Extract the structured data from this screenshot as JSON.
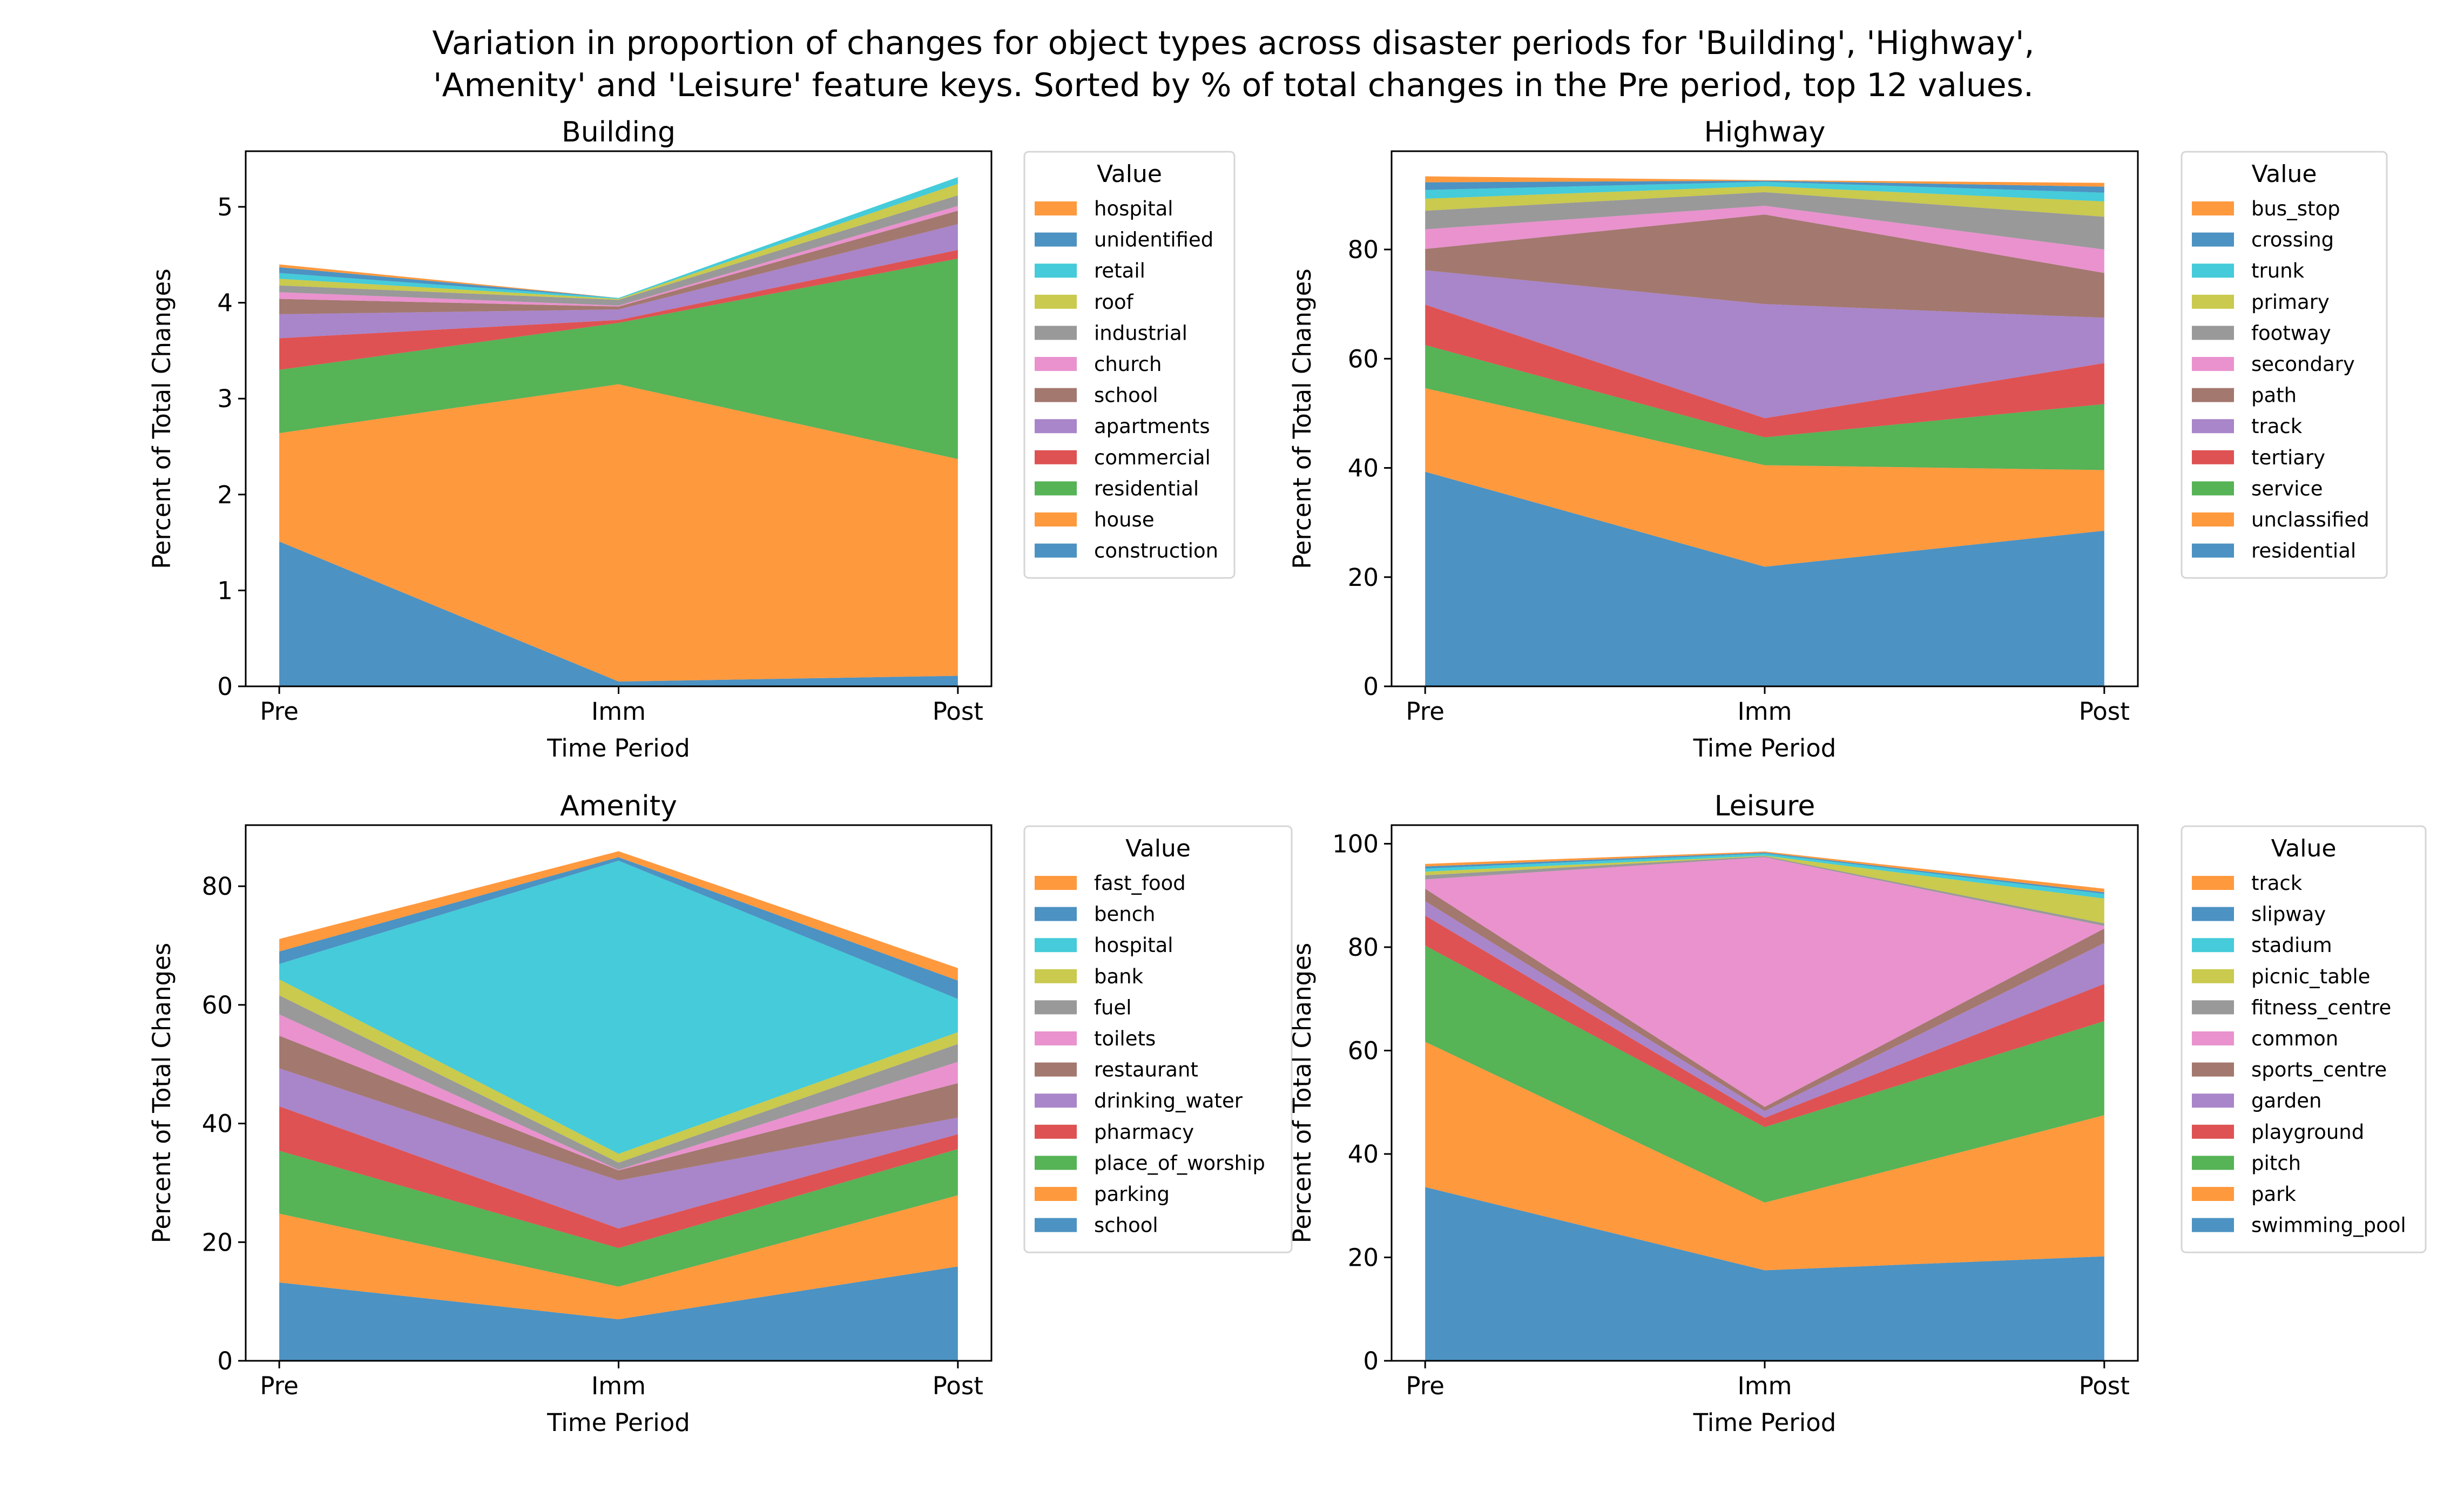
{
  "figure": {
    "title_lines": [
      "Variation in proportion of changes for object types across disaster periods for 'Building', 'Highway',",
      "'Amenity' and 'Leisure' feature keys. Sorted by % of total changes in the Pre period, top 12 values."
    ]
  },
  "palette": [
    "#1f77b4",
    "#ff7f0e",
    "#2ca02c",
    "#d62728",
    "#9467bd",
    "#8c564b",
    "#e377c2",
    "#7f7f7f",
    "#bcbd22",
    "#17becf",
    "#1f77b4",
    "#ff7f0e"
  ],
  "fill_alpha": 0.8,
  "chart_data": [
    {
      "type": "area",
      "stacked": true,
      "title": "Building",
      "xlabel": "Time Period",
      "ylabel": "Percent of Total Changes",
      "categories": [
        "Pre",
        "Imm",
        "Post"
      ],
      "ylim": [
        0,
        5.58
      ],
      "yticks": [
        0,
        1,
        2,
        3,
        4,
        5
      ],
      "legend_title": "Value",
      "legend_placement": "outside-right",
      "series": [
        {
          "name": "construction",
          "values": [
            1.51,
            0.05,
            0.11
          ]
        },
        {
          "name": "house",
          "values": [
            1.13,
            3.1,
            2.26
          ]
        },
        {
          "name": "residential",
          "values": [
            0.66,
            0.64,
            2.09
          ]
        },
        {
          "name": "commercial",
          "values": [
            0.33,
            0.03,
            0.09
          ]
        },
        {
          "name": "apartments",
          "values": [
            0.25,
            0.11,
            0.27
          ]
        },
        {
          "name": "school",
          "values": [
            0.16,
            0.03,
            0.14
          ]
        },
        {
          "name": "church",
          "values": [
            0.07,
            0.01,
            0.05
          ]
        },
        {
          "name": "industrial",
          "values": [
            0.07,
            0.06,
            0.11
          ]
        },
        {
          "name": "roof",
          "values": [
            0.07,
            0.01,
            0.12
          ]
        },
        {
          "name": "retail",
          "values": [
            0.06,
            0.01,
            0.07
          ]
        },
        {
          "name": "unidentified",
          "values": [
            0.06,
            0.0,
            0.0
          ]
        },
        {
          "name": "hospital",
          "values": [
            0.03,
            0.0,
            0.0
          ]
        }
      ]
    },
    {
      "type": "area",
      "stacked": true,
      "title": "Highway",
      "xlabel": "Time Period",
      "ylabel": "Percent of Total Changes",
      "categories": [
        "Pre",
        "Imm",
        "Post"
      ],
      "ylim": [
        0,
        98
      ],
      "yticks": [
        0,
        20,
        40,
        60,
        80
      ],
      "legend_title": "Value",
      "legend_placement": "outside-right",
      "series": [
        {
          "name": "residential",
          "values": [
            39.3,
            21.9,
            28.5
          ]
        },
        {
          "name": "unclassified",
          "values": [
            15.3,
            18.6,
            11.1
          ]
        },
        {
          "name": "service",
          "values": [
            7.9,
            5.1,
            12.1
          ]
        },
        {
          "name": "tertiary",
          "values": [
            7.4,
            3.5,
            7.5
          ]
        },
        {
          "name": "track",
          "values": [
            6.3,
            20.9,
            8.3
          ]
        },
        {
          "name": "path",
          "values": [
            3.9,
            16.4,
            8.2
          ]
        },
        {
          "name": "secondary",
          "values": [
            3.6,
            1.6,
            4.3
          ]
        },
        {
          "name": "footway",
          "values": [
            3.4,
            2.5,
            6.0
          ]
        },
        {
          "name": "primary",
          "values": [
            2.2,
            1.1,
            2.8
          ]
        },
        {
          "name": "trunk",
          "values": [
            1.6,
            0.8,
            1.6
          ]
        },
        {
          "name": "crossing",
          "values": [
            1.4,
            0.2,
            1.1
          ]
        },
        {
          "name": "bus_stop",
          "values": [
            1.1,
            0.1,
            0.7
          ]
        }
      ]
    },
    {
      "type": "area",
      "stacked": true,
      "title": "Amenity",
      "xlabel": "Time Period",
      "ylabel": "Percent of Total Changes",
      "categories": [
        "Pre",
        "Imm",
        "Post"
      ],
      "ylim": [
        0,
        90.3
      ],
      "yticks": [
        0,
        20,
        40,
        60,
        80
      ],
      "legend_title": "Value",
      "legend_placement": "outside-right",
      "series": [
        {
          "name": "school",
          "values": [
            13.2,
            7.0,
            15.9
          ]
        },
        {
          "name": "parking",
          "values": [
            11.6,
            5.5,
            12.0
          ]
        },
        {
          "name": "place_of_worship",
          "values": [
            10.6,
            6.5,
            7.8
          ]
        },
        {
          "name": "pharmacy",
          "values": [
            7.5,
            3.3,
            2.5
          ]
        },
        {
          "name": "drinking_water",
          "values": [
            6.4,
            8.1,
            2.8
          ]
        },
        {
          "name": "restaurant",
          "values": [
            5.5,
            1.7,
            5.8
          ]
        },
        {
          "name": "toilets",
          "values": [
            3.6,
            0.1,
            3.6
          ]
        },
        {
          "name": "fuel",
          "values": [
            3.2,
            1.2,
            3.0
          ]
        },
        {
          "name": "bank",
          "values": [
            2.7,
            1.5,
            2.0
          ]
        },
        {
          "name": "hospital",
          "values": [
            2.6,
            49.4,
            5.6
          ]
        },
        {
          "name": "bench",
          "values": [
            2.1,
            0.6,
            3.1
          ]
        },
        {
          "name": "fast_food",
          "values": [
            2.1,
            1.0,
            2.1
          ]
        }
      ]
    },
    {
      "type": "area",
      "stacked": true,
      "title": "Leisure",
      "xlabel": "Time Period",
      "ylabel": "Percent of Total Changes",
      "categories": [
        "Pre",
        "Imm",
        "Post"
      ],
      "ylim": [
        0,
        103.6
      ],
      "yticks": [
        0,
        20,
        40,
        60,
        80,
        100
      ],
      "legend_title": "Value",
      "legend_placement": "outside-right",
      "series": [
        {
          "name": "swimming_pool",
          "values": [
            33.6,
            17.5,
            20.2
          ]
        },
        {
          "name": "park",
          "values": [
            28.1,
            13.1,
            27.3
          ]
        },
        {
          "name": "pitch",
          "values": [
            18.6,
            14.6,
            18.2
          ]
        },
        {
          "name": "playground",
          "values": [
            5.8,
            1.8,
            7.2
          ]
        },
        {
          "name": "garden",
          "values": [
            2.8,
            1.3,
            7.9
          ]
        },
        {
          "name": "sports_centre",
          "values": [
            2.4,
            0.8,
            2.8
          ]
        },
        {
          "name": "common",
          "values": [
            1.8,
            48.3,
            0.5
          ]
        },
        {
          "name": "fitness_centre",
          "values": [
            0.8,
            0.2,
            0.5
          ]
        },
        {
          "name": "picnic_table",
          "values": [
            0.7,
            0.1,
            4.8
          ]
        },
        {
          "name": "stadium",
          "values": [
            0.6,
            0.4,
            0.9
          ]
        },
        {
          "name": "slipway",
          "values": [
            0.4,
            0.2,
            0.3
          ]
        },
        {
          "name": "track",
          "values": [
            0.5,
            0.2,
            0.7
          ]
        }
      ]
    }
  ]
}
